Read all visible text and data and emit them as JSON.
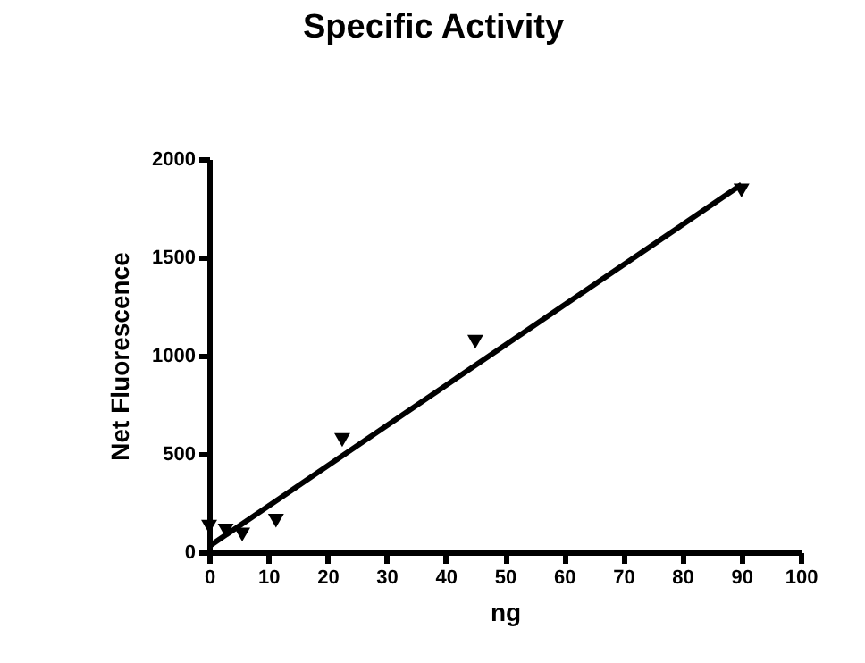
{
  "chart_data": {
    "type": "scatter",
    "title": "Specific Activity",
    "xlabel": "ng",
    "ylabel": "Net Fluorescence",
    "grid": false,
    "xlim": [
      0,
      100
    ],
    "ylim": [
      0,
      2000
    ],
    "xticks": [
      0,
      10,
      20,
      30,
      40,
      50,
      60,
      70,
      80,
      90,
      100
    ],
    "yticks": [
      0,
      500,
      1000,
      1500,
      2000
    ],
    "series": [
      {
        "color": "#000000",
        "marker": "triangle",
        "x": [
          0,
          2.8,
          5.6,
          11.3,
          22.5,
          45,
          90
        ],
        "values": [
          130,
          110,
          90,
          160,
          570,
          1070,
          1840
        ]
      },
      {
        "type": "line",
        "color": "#000000",
        "marker": "none",
        "x": [
          0,
          90
        ],
        "values": [
          30,
          1870
        ]
      }
    ]
  }
}
